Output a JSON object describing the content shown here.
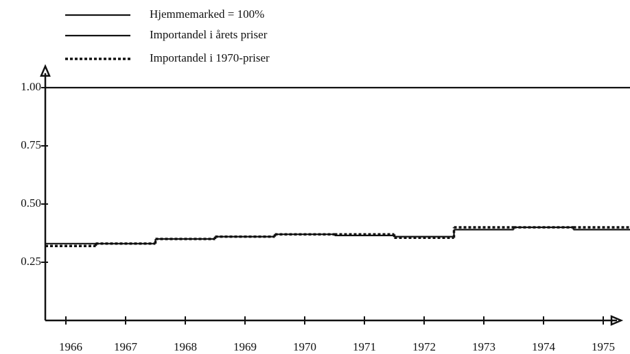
{
  "chart_data": {
    "type": "step",
    "categories": [
      "1966",
      "1967",
      "1968",
      "1969",
      "1970",
      "1971",
      "1972",
      "1973",
      "1974",
      "1975"
    ],
    "series": [
      {
        "name": "Hjemmemarked = 100%",
        "color": "#111111",
        "style": "solid",
        "values": [
          1,
          1,
          1,
          1,
          1,
          1,
          1,
          1,
          1,
          1
        ]
      },
      {
        "name": "Importandel i årets priser",
        "color": "#111111",
        "style": "solid",
        "values": [
          0.33,
          0.33,
          0.35,
          0.36,
          0.37,
          0.365,
          0.36,
          0.39,
          0.4,
          0.39
        ]
      },
      {
        "name": "Importandel i 1970-priser",
        "color": "#111111",
        "style": "dotted",
        "values": [
          0.32,
          0.33,
          0.35,
          0.36,
          0.37,
          0.37,
          0.355,
          0.4,
          0.4,
          0.4
        ]
      }
    ],
    "ylim": [
      0,
      1.08
    ],
    "yticks": [
      {
        "value": 0.25,
        "label": "0.25"
      },
      {
        "value": 0.5,
        "label": "0.50"
      },
      {
        "value": 0.75,
        "label": "0.75"
      },
      {
        "value": 1,
        "label": "1.00"
      }
    ],
    "legend": "top-left"
  }
}
